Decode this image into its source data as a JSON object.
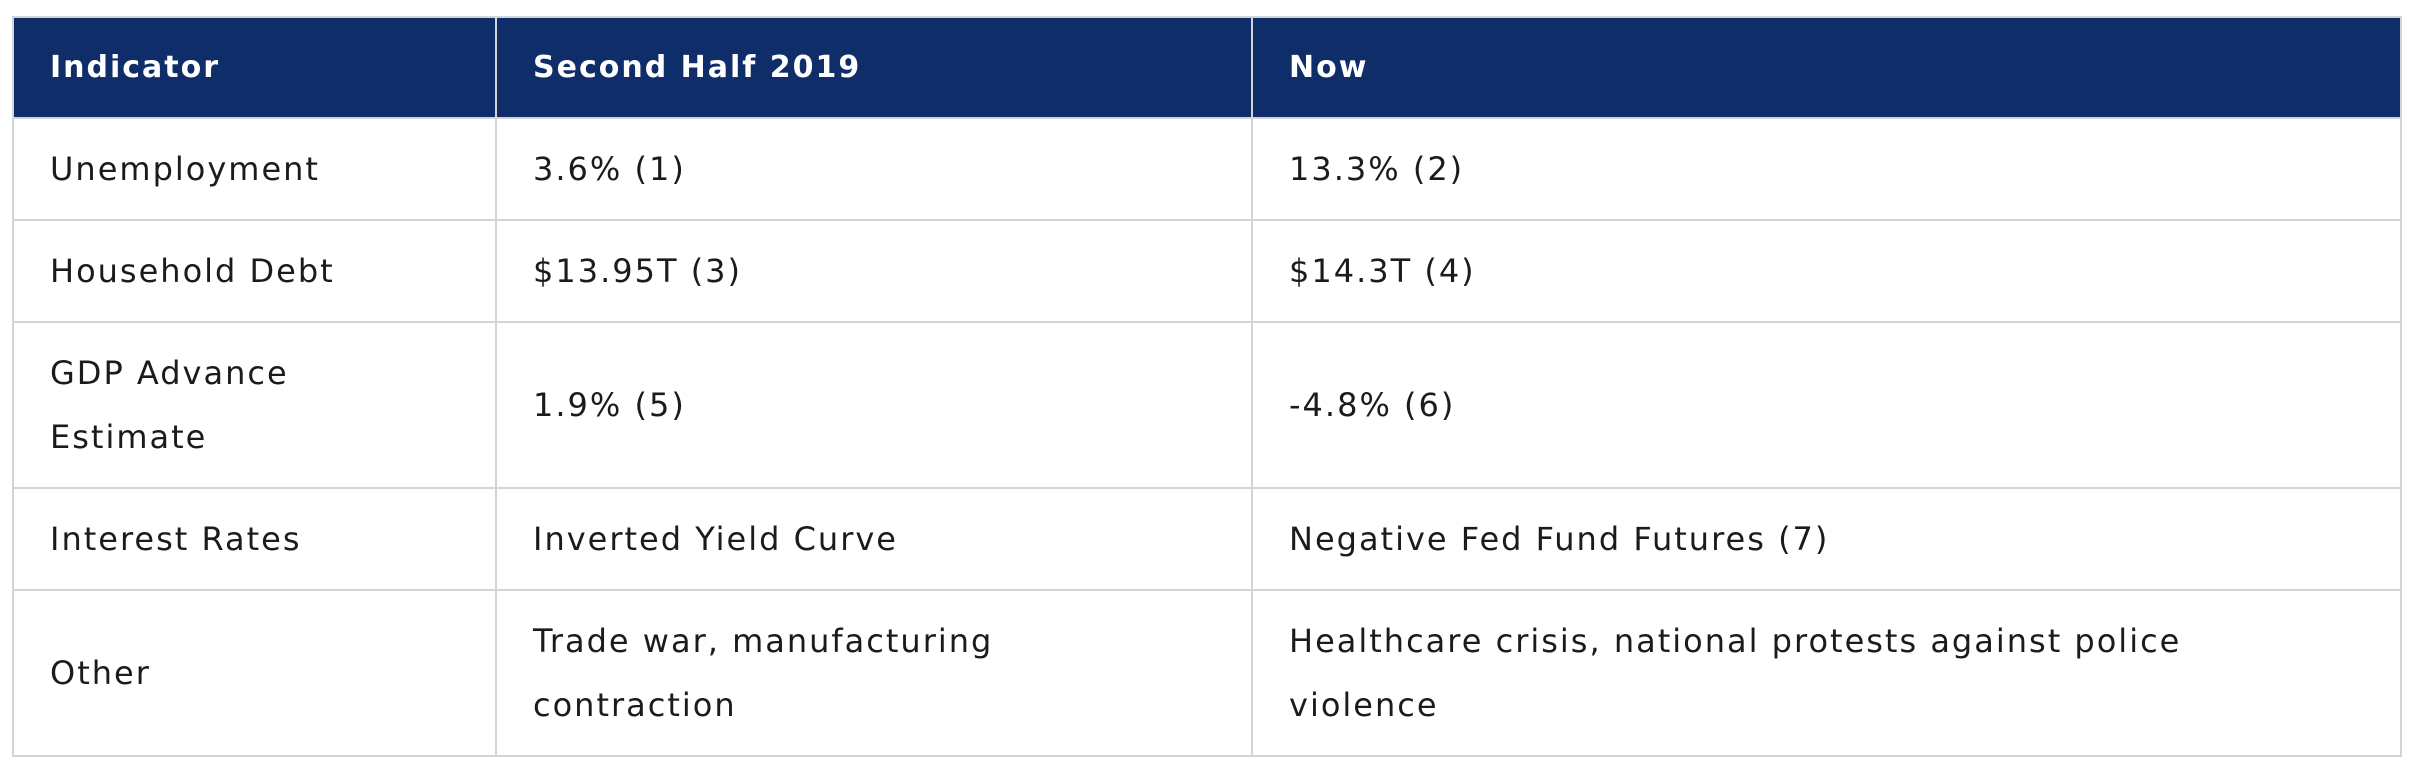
{
  "table": {
    "headers": [
      "Indicator",
      "Second Half 2019",
      "Now"
    ],
    "rows": [
      [
        "Unemployment",
        "3.6% (1)",
        "13.3% (2)"
      ],
      [
        "Household Debt",
        "$13.95T (3)",
        "$14.3T (4)"
      ],
      [
        "GDP Advance Estimate",
        "1.9% (5)",
        "-4.8% (6)"
      ],
      [
        "Interest Rates",
        "Inverted Yield Curve",
        "Negative Fed Fund Futures (7)"
      ],
      [
        "Other",
        "Trade war, manufacturing contraction",
        "Healthcare crisis, national protests against police violence"
      ]
    ]
  },
  "colors": {
    "header_bg": "#0f2d69",
    "header_text": "#ffffff",
    "border": "#d2d4d8",
    "body_text": "#1b1b1b"
  }
}
